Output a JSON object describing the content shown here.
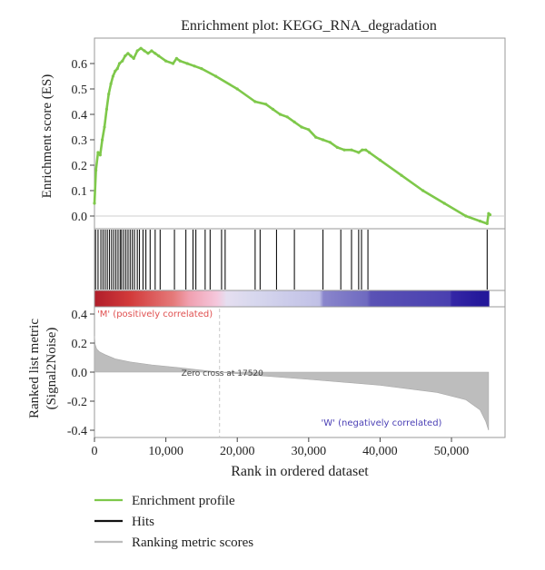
{
  "chart_data": {
    "type": "line",
    "title": "Enrichment plot: KEGG_RNA_degradation",
    "es_panel": {
      "ylabel": "Enrichment score (ES)",
      "ylim": [
        -0.05,
        0.7
      ],
      "yticks": [
        "0.0",
        "0.1",
        "0.2",
        "0.3",
        "0.4",
        "0.5",
        "0.6"
      ],
      "ytick_values": [
        0.0,
        0.1,
        0.2,
        0.3,
        0.4,
        0.5,
        0.6
      ],
      "color": "#7ec84a",
      "x": [
        0,
        200,
        500,
        800,
        1100,
        1400,
        1700,
        2000,
        2300,
        2600,
        2900,
        3200,
        3500,
        3900,
        4300,
        4700,
        5100,
        5500,
        6000,
        6500,
        7000,
        7500,
        8000,
        8500,
        9000,
        10000,
        11000,
        11500,
        12000,
        13000,
        14000,
        15000,
        17000,
        20000,
        22500,
        24000,
        25000,
        26000,
        27000,
        28000,
        29000,
        30000,
        31000,
        32000,
        33000,
        34000,
        35000,
        36000,
        37000,
        37500,
        38000,
        38500,
        40000,
        43000,
        46000,
        49000,
        52000,
        54000,
        55000,
        55200,
        55400
      ],
      "y": [
        0.05,
        0.18,
        0.25,
        0.24,
        0.3,
        0.35,
        0.42,
        0.48,
        0.52,
        0.55,
        0.57,
        0.58,
        0.6,
        0.61,
        0.63,
        0.64,
        0.63,
        0.62,
        0.65,
        0.66,
        0.65,
        0.64,
        0.65,
        0.64,
        0.63,
        0.61,
        0.6,
        0.62,
        0.61,
        0.6,
        0.59,
        0.58,
        0.55,
        0.5,
        0.45,
        0.44,
        0.42,
        0.4,
        0.39,
        0.37,
        0.35,
        0.34,
        0.31,
        0.3,
        0.29,
        0.27,
        0.26,
        0.26,
        0.25,
        0.26,
        0.26,
        0.25,
        0.22,
        0.16,
        0.1,
        0.05,
        0.0,
        -0.02,
        -0.03,
        0.01,
        0.005
      ]
    },
    "hits": {
      "x": [
        150,
        500,
        900,
        1200,
        1500,
        1800,
        2100,
        2400,
        2700,
        3000,
        3300,
        3600,
        3800,
        4100,
        4400,
        4700,
        5000,
        5300,
        5600,
        6000,
        6300,
        6800,
        7200,
        7800,
        8500,
        9200,
        11200,
        12800,
        13800,
        14200,
        15500,
        16200,
        17800,
        18300,
        22500,
        23200,
        25500,
        28000,
        32000,
        34500,
        36000,
        37000,
        37400,
        38300,
        55000
      ]
    },
    "ranked_panel": {
      "ylabel": "Ranked list metric",
      "ylabel2": "(Signal2Noise)",
      "ylim": [
        -0.45,
        0.45
      ],
      "yticks": [
        "0.4",
        "0.2",
        "0.0",
        "-0.2",
        "-0.4"
      ],
      "ytick_values": [
        0.4,
        0.2,
        0.0,
        -0.2,
        -0.4
      ],
      "pos_label": "'M' (positively correlated)",
      "neg_label": "'W' (negatively correlated)",
      "zero_cross_label": "Zero cross at 17520",
      "zero_cross_x": 17520,
      "metric_x": [
        0,
        100,
        300,
        700,
        1500,
        3000,
        5000,
        8000,
        12000,
        17520,
        22000,
        30000,
        40000,
        48000,
        52000,
        54000,
        54800,
        55200
      ],
      "metric_y": [
        0.25,
        0.19,
        0.16,
        0.14,
        0.12,
        0.09,
        0.07,
        0.05,
        0.03,
        0.0,
        -0.02,
        -0.05,
        -0.09,
        -0.14,
        -0.19,
        -0.26,
        -0.34,
        -0.4
      ]
    },
    "xaxis": {
      "xlabel": "Rank in ordered dataset",
      "xlim": [
        0,
        57500
      ],
      "xticks": [
        "0",
        "10,000",
        "20,000",
        "30,000",
        "40,000",
        "50,000"
      ],
      "xtick_values": [
        0,
        10000,
        20000,
        30000,
        40000,
        50000
      ]
    },
    "legend": {
      "placement": "bottom-left",
      "items": [
        {
          "label": "Enrichment profile",
          "color": "#7ec84a"
        },
        {
          "label": "Hits",
          "color": "#111111"
        },
        {
          "label": "Ranking metric scores",
          "color": "#bdbdbd"
        }
      ]
    },
    "colors": {
      "metric_fill": "#bdbdbd",
      "zero_line": "#c8c8c8",
      "frame": "#9a9a9a",
      "pos_text": "#e05050",
      "neg_text": "#4a3fb5"
    }
  }
}
